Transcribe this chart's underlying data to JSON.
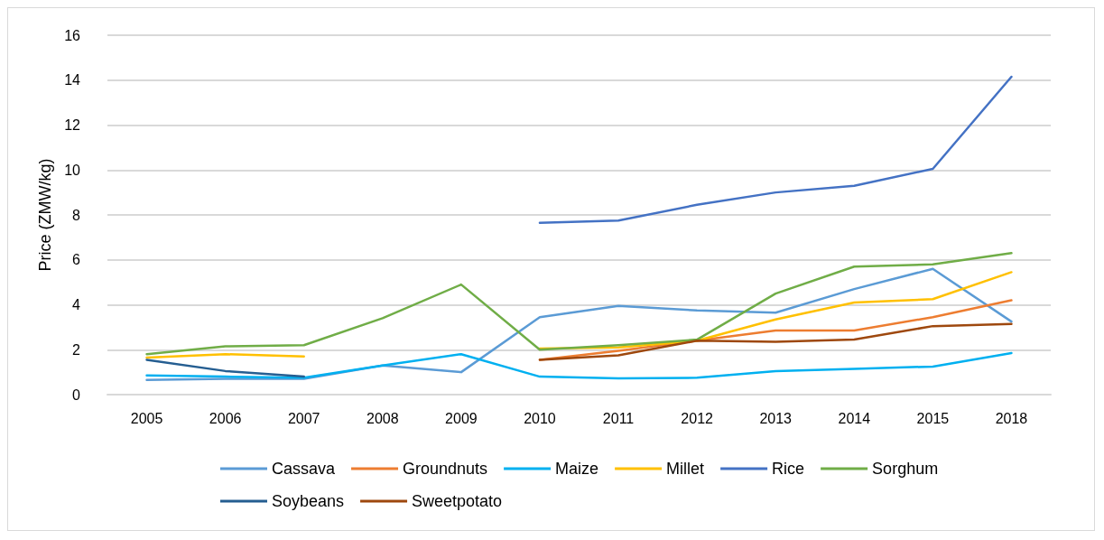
{
  "chart_data": {
    "type": "line",
    "ylabel": "Price (ZMW/kg)",
    "categories": [
      "2005",
      "2006",
      "2007",
      "2008",
      "2009",
      "2010",
      "2011",
      "2012",
      "2013",
      "2014",
      "2015",
      "2018"
    ],
    "ylim": [
      0,
      16
    ],
    "yticks": [
      0,
      2,
      4,
      6,
      8,
      10,
      12,
      14,
      16
    ],
    "grid": "y",
    "legend": "bottom",
    "marker": "none",
    "line_style": "solid",
    "series": [
      {
        "name": "Cassava",
        "color": "#5b9bd5",
        "values": [
          0.65,
          0.7,
          0.7,
          1.3,
          1.0,
          3.45,
          3.95,
          3.75,
          3.65,
          4.7,
          5.6,
          3.25
        ]
      },
      {
        "name": "Groundnuts",
        "color": "#ed7d31",
        "values": [
          null,
          null,
          null,
          null,
          null,
          1.55,
          1.95,
          2.4,
          2.85,
          2.85,
          3.45,
          4.2
        ]
      },
      {
        "name": "Maize",
        "color": "#00b0f0",
        "values": [
          0.85,
          0.8,
          0.75,
          1.3,
          1.8,
          0.8,
          0.72,
          0.75,
          1.05,
          1.15,
          1.25,
          1.85
        ]
      },
      {
        "name": "Millet",
        "color": "#ffc000",
        "values": [
          1.65,
          1.8,
          1.7,
          null,
          null,
          2.05,
          2.1,
          2.4,
          3.35,
          4.1,
          4.25,
          5.45
        ]
      },
      {
        "name": "Rice",
        "color": "#4472c4",
        "values": [
          null,
          null,
          null,
          null,
          null,
          7.65,
          7.75,
          8.45,
          9.0,
          9.3,
          10.05,
          14.15
        ]
      },
      {
        "name": "Sorghum",
        "color": "#70ad47",
        "values": [
          1.8,
          2.15,
          2.2,
          3.4,
          4.9,
          2.0,
          2.2,
          2.45,
          4.5,
          5.7,
          5.8,
          6.3
        ]
      },
      {
        "name": "Soybeans",
        "color": "#255e91",
        "values": [
          1.55,
          1.05,
          0.8,
          null,
          null,
          null,
          null,
          null,
          null,
          null,
          null,
          null
        ]
      },
      {
        "name": "Sweetpotato",
        "color": "#9e480e",
        "values": [
          null,
          null,
          null,
          null,
          null,
          1.55,
          1.75,
          2.4,
          2.35,
          2.45,
          3.05,
          3.15
        ]
      }
    ]
  }
}
